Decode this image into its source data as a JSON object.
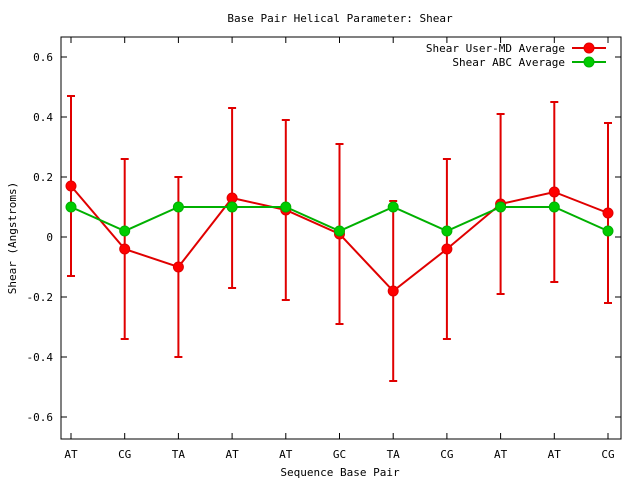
{
  "chart_data": {
    "type": "line",
    "title": "Base Pair Helical Parameter: Shear",
    "xlabel": "Sequence Base Pair",
    "ylabel": "Shear (Angstroms)",
    "categories": [
      "AT",
      "CG",
      "TA",
      "AT",
      "AT",
      "GC",
      "TA",
      "CG",
      "AT",
      "AT",
      "CG"
    ],
    "ylim": [
      -0.67,
      0.67
    ],
    "yticks": [
      -0.6,
      -0.4,
      -0.2,
      0,
      0.2,
      0.4,
      0.6
    ],
    "ytick_labels": [
      "-0.6",
      "-0.4",
      "-0.2",
      "0",
      "0.2",
      "0.4",
      "0.6"
    ],
    "grid": false,
    "legend_position": "top-right",
    "series": [
      {
        "name": "Shear User-MD Average",
        "color": "#ff0000",
        "line_color": "#e00000",
        "values": [
          0.17,
          -0.04,
          -0.1,
          0.13,
          0.09,
          0.01,
          -0.18,
          -0.04,
          0.11,
          0.15,
          0.08
        ],
        "error_low": [
          -0.13,
          -0.34,
          -0.4,
          -0.17,
          -0.21,
          -0.29,
          -0.48,
          -0.34,
          -0.19,
          -0.15,
          -0.22
        ],
        "error_high": [
          0.47,
          0.26,
          0.2,
          0.43,
          0.39,
          0.31,
          0.12,
          0.26,
          0.41,
          0.45,
          0.38
        ]
      },
      {
        "name": "Shear ABC Average",
        "color": "#00cc00",
        "line_color": "#00b000",
        "values": [
          0.1,
          0.02,
          0.1,
          0.1,
          0.1,
          0.02,
          0.1,
          0.02,
          0.1,
          0.1,
          0.02
        ]
      }
    ]
  }
}
